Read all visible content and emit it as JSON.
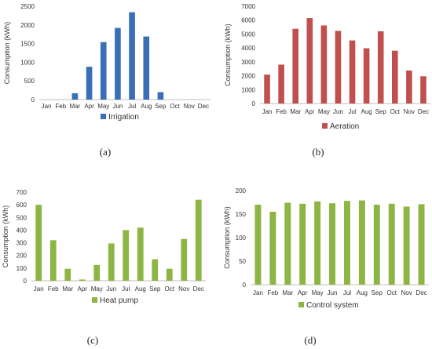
{
  "charts": [
    {
      "id": "a",
      "caption": "(a)",
      "chart_data": {
        "type": "bar",
        "categories": [
          "Jan",
          "Feb",
          "Mar",
          "Apr",
          "May",
          "Jun",
          "Jul",
          "Aug",
          "Sep",
          "Oct",
          "Nov",
          "Dec"
        ],
        "series": [
          {
            "name": "Irrigation",
            "values": [
              0,
              0,
              170,
              880,
              1540,
              1920,
              2340,
              1690,
              200,
              0,
              0,
              0
            ],
            "color": "#3a6fb7"
          }
        ],
        "ylabel": "Consumption (kWh)",
        "ylim": [
          0,
          2500
        ],
        "yticks": [
          0,
          500,
          1000,
          1500,
          2000,
          2500
        ],
        "grid": false,
        "legend": "bottom"
      }
    },
    {
      "id": "b",
      "caption": "(b)",
      "chart_data": {
        "type": "bar",
        "categories": [
          "Jan",
          "Feb",
          "Mar",
          "Apr",
          "May",
          "Jun",
          "Jul",
          "Aug",
          "Sep",
          "Oct",
          "Nov",
          "Dec"
        ],
        "series": [
          {
            "name": "Aeration",
            "values": [
              2080,
              2800,
              5380,
              6150,
              5620,
              5230,
              4540,
              3980,
              5200,
              3800,
              2380,
              1960
            ],
            "color": "#c0504d"
          }
        ],
        "ylabel": "Consumption (kWh)",
        "ylim": [
          0,
          7000
        ],
        "yticks": [
          0,
          1000,
          2000,
          3000,
          4000,
          5000,
          6000,
          7000
        ],
        "grid": false,
        "legend": "bottom"
      }
    },
    {
      "id": "c",
      "caption": "(c)",
      "chart_data": {
        "type": "bar",
        "categories": [
          "Jan",
          "Feb",
          "Mar",
          "Apr",
          "May",
          "Jun",
          "Jul",
          "Aug",
          "Sep",
          "Oct",
          "Nov",
          "Dec"
        ],
        "series": [
          {
            "name": "Heat pump",
            "values": [
              600,
              320,
              95,
              10,
              125,
              295,
              400,
              420,
              170,
              95,
              330,
              640
            ],
            "color": "#8db543"
          }
        ],
        "ylabel": "Consumption (kWh)",
        "ylim": [
          0,
          700
        ],
        "yticks": [
          0,
          100,
          200,
          300,
          400,
          500,
          600,
          700
        ],
        "grid": false,
        "legend": "bottom"
      }
    },
    {
      "id": "d",
      "caption": "(d)",
      "chart_data": {
        "type": "bar",
        "categories": [
          "Jan",
          "Feb",
          "Mar",
          "Apr",
          "May",
          "Jun",
          "Jul",
          "Aug",
          "Sep",
          "Oct",
          "Nov",
          "Dec"
        ],
        "series": [
          {
            "name": "Control system",
            "values": [
              170,
              155,
              174,
              172,
              177,
              173,
              178,
              179,
              170,
              172,
              166,
              171
            ],
            "color": "#8db543"
          }
        ],
        "ylabel": "Consumption (kWh)",
        "ylim": [
          0,
          200
        ],
        "yticks": [
          0,
          50,
          100,
          150,
          200
        ],
        "grid": false,
        "legend": "bottom"
      }
    }
  ]
}
